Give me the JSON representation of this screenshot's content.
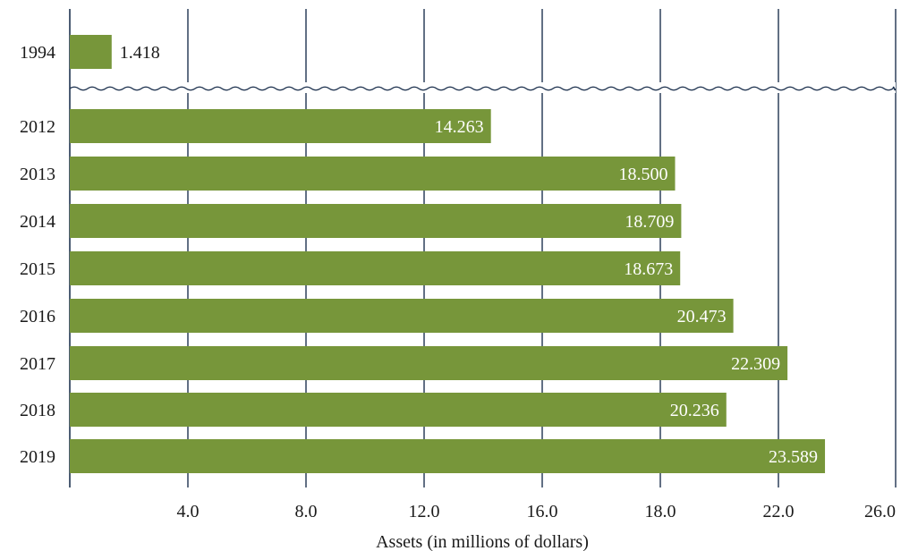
{
  "chart_data": {
    "type": "bar",
    "orientation": "horizontal",
    "categories": [
      "1994",
      "2012",
      "2013",
      "2014",
      "2015",
      "2016",
      "2017",
      "2018",
      "2019"
    ],
    "values": [
      1.418,
      14.263,
      18.5,
      18.709,
      18.673,
      20.473,
      22.309,
      20.236,
      23.589
    ],
    "value_labels": [
      "1.418",
      "14.263",
      "18.500",
      "18.709",
      "18.673",
      "20.473",
      "22.309",
      "20.236",
      "23.589"
    ],
    "x_ticks": [
      0,
      4,
      8,
      12,
      16,
      18,
      22,
      26
    ],
    "x_tick_labels": [
      "",
      "4.0",
      "8.0",
      "12.0",
      "16.0",
      "18.0",
      "22.0",
      "26.0"
    ],
    "xlabel": "Assets (in millions of dollars)",
    "ylabel": "",
    "title": "",
    "axis_break_after": "1994",
    "grid": "vertical",
    "colors": {
      "bar": "#77963a",
      "grid": "#1f3350",
      "text": "#1a1a1a",
      "inside_label": "#ffffff"
    }
  }
}
